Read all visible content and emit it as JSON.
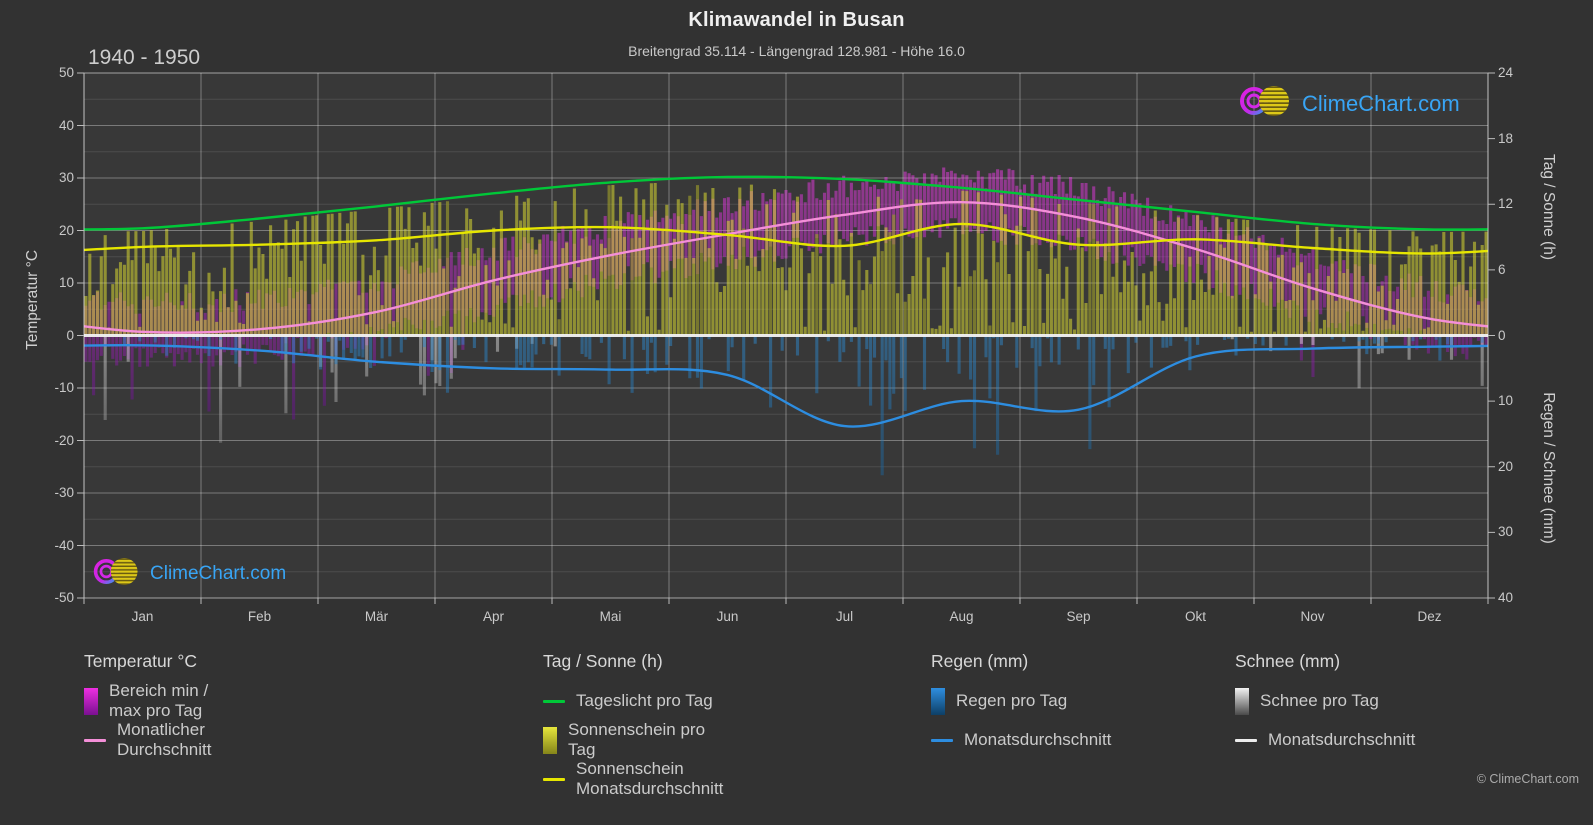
{
  "header": {
    "period_label": "1940 - 1950",
    "title": "Klimawandel in Busan",
    "subtitle": "Breitengrad 35.114 - Längengrad 128.981 - Höhe 16.0"
  },
  "watermarks": {
    "logo_text": "ClimeChart.com",
    "copyright": "© ClimeChart.com"
  },
  "axes": {
    "left": {
      "label": "Temperatur °C",
      "ticks": [
        50,
        40,
        30,
        20,
        10,
        0,
        -10,
        -20,
        -30,
        -40,
        -50
      ],
      "range": [
        -50,
        50
      ]
    },
    "right_top": {
      "label": "Tag / Sonne (h)",
      "ticks": [
        24,
        18,
        12,
        6,
        0
      ],
      "range": [
        0,
        24
      ]
    },
    "right_bottom": {
      "label": "Regen / Schnee (mm)",
      "ticks": [
        10,
        20,
        30,
        40
      ],
      "range": [
        0,
        40
      ],
      "direction": "down"
    },
    "x": {
      "months": [
        "Jan",
        "Feb",
        "Mär",
        "Apr",
        "Mai",
        "Jun",
        "Jul",
        "Aug",
        "Sep",
        "Okt",
        "Nov",
        "Dez"
      ]
    }
  },
  "colors": {
    "page_bg": "#323232",
    "plot_bg": "#383838",
    "grid_major": "rgba(255,255,255,0.26)",
    "grid_minor": "rgba(255,255,255,0.10)",
    "axis_line": "rgba(255,255,255,0.55)",
    "zero_line": "#f2f2f2",
    "daylight_line": "#00c838",
    "sunshine_line": "#e6e600",
    "temp_line": "#f48fd8",
    "rain_line": "#2d8de0",
    "snow_line": "#ededed",
    "magenta_bar_top": "#f03ce8",
    "magenta_bar_mid": "#b428c0",
    "magenta_bar_bottom": "#6a1490",
    "sun_bar": "#d8d832",
    "rain_bar_top": "#2f86c8",
    "rain_bar_bottom": "#0d3f66",
    "snow_bar_top": "#ececec",
    "snow_bar_bottom": "#3c3c3c",
    "brand_blue": "#38a5f5"
  },
  "legend": {
    "groups": [
      {
        "title": "Temperatur °C",
        "items": [
          {
            "type": "gradient",
            "from": "#ee2fe2",
            "to": "#7a1090",
            "label": "Bereich min / max pro Tag"
          },
          {
            "type": "line",
            "color": "#f48fd8",
            "label": "Monatlicher Durchschnitt"
          }
        ]
      },
      {
        "title": "Tag / Sonne (h)",
        "items": [
          {
            "type": "line",
            "color": "#00c838",
            "label": "Tageslicht pro Tag"
          },
          {
            "type": "gradient",
            "from": "#e6e63c",
            "to": "#85851a",
            "label": "Sonnenschein pro Tag"
          },
          {
            "type": "line",
            "color": "#e6e600",
            "label": "Sonnenschein Monatsdurchschnitt"
          }
        ]
      },
      {
        "title": "Regen (mm)",
        "items": [
          {
            "type": "gradient",
            "from": "#2f8ee0",
            "to": "#0d3f66",
            "label": "Regen pro Tag"
          },
          {
            "type": "line",
            "color": "#2d8de0",
            "label": "Monatsdurchschnitt"
          }
        ]
      },
      {
        "title": "Schnee (mm)",
        "items": [
          {
            "type": "gradient",
            "from": "#f2f2f2",
            "to": "#4a4a4a",
            "label": "Schnee pro Tag"
          },
          {
            "type": "line",
            "color": "#ededed",
            "label": "Monatsdurchschnitt"
          }
        ]
      }
    ]
  },
  "chart_data": {
    "type": "area",
    "title": "Klimawandel in Busan",
    "subtitle": "Breitengrad 35.114 - Längengrad 128.981 - Höhe 16.0",
    "period": "1940 - 1950",
    "location": {
      "latitude": 35.114,
      "longitude": 128.981,
      "elevation_m": 16.0
    },
    "categories": [
      "Jan",
      "Feb",
      "Mär",
      "Apr",
      "Mai",
      "Jun",
      "Jul",
      "Aug",
      "Sep",
      "Okt",
      "Nov",
      "Dez"
    ],
    "ylim_temp_c": [
      -50,
      50
    ],
    "ylim_sun_h": [
      0,
      24
    ],
    "ylim_precip_mm": [
      0,
      40
    ],
    "grid": true,
    "legend_position": "bottom",
    "series": [
      {
        "name": "Tageslicht pro Tag",
        "unit": "h",
        "style": "line",
        "color": "#00c838",
        "values": [
          9.8,
          10.7,
          11.8,
          13.0,
          14.0,
          14.5,
          14.3,
          13.5,
          12.4,
          11.3,
          10.2,
          9.7
        ]
      },
      {
        "name": "Sonnenschein Monatsdurchschnitt",
        "unit": "h",
        "style": "line",
        "color": "#e6e600",
        "values": [
          8.1,
          8.3,
          8.7,
          9.6,
          9.9,
          9.2,
          8.2,
          10.2,
          8.3,
          8.8,
          8.0,
          7.5
        ]
      },
      {
        "name": "Sonnenschein pro Tag",
        "unit": "h",
        "style": "daily-bars",
        "color": "#d8d832",
        "monthly_mean": [
          8.1,
          8.3,
          8.7,
          9.6,
          9.9,
          9.2,
          8.2,
          10.2,
          8.3,
          8.8,
          8.0,
          7.5
        ]
      },
      {
        "name": "Monatlicher Durchschnitt (Temperatur)",
        "unit": "°C",
        "style": "line",
        "color": "#f48fd8",
        "values": [
          0.7,
          1.2,
          4.5,
          10.5,
          15.3,
          19.3,
          23.0,
          25.4,
          22.5,
          16.5,
          9.0,
          3.2
        ]
      },
      {
        "name": "Bereich min / max pro Tag (Temperatur)",
        "unit": "°C",
        "style": "daily-range-bars",
        "color": "#ee2fe2",
        "typical_daily_max": [
          6,
          7,
          10,
          16,
          20,
          23,
          27,
          30,
          26,
          21,
          14,
          8
        ],
        "typical_daily_min": [
          -4,
          -4,
          -1,
          6,
          11,
          16,
          20,
          22,
          18,
          12,
          4,
          -2
        ]
      },
      {
        "name": "Monatsdurchschnitt (Regen)",
        "unit": "mm/Tag",
        "style": "line",
        "color": "#2d8de0",
        "values": [
          1.5,
          2.3,
          4.0,
          5.0,
          5.2,
          6.0,
          13.8,
          10.0,
          11.3,
          3.2,
          2.0,
          1.7
        ]
      },
      {
        "name": "Regen pro Tag",
        "unit": "mm",
        "style": "daily-bars",
        "color": "#2f86c8",
        "monthly_mean": [
          1.5,
          2.3,
          4.0,
          5.0,
          5.2,
          6.0,
          13.8,
          10.0,
          11.3,
          3.2,
          2.0,
          1.7
        ]
      },
      {
        "name": "Monatsdurchschnitt (Schnee)",
        "unit": "mm/Tag",
        "style": "line",
        "color": "#ededed",
        "values": [
          0,
          0,
          0,
          0,
          0,
          0,
          0,
          0,
          0,
          0,
          0,
          0
        ]
      },
      {
        "name": "Schnee pro Tag",
        "unit": "mm",
        "style": "daily-bars",
        "color": "#ececec",
        "monthly_potential": [
          2.5,
          3.0,
          2.8,
          0.6,
          0,
          0,
          0,
          0,
          0,
          0,
          0.8,
          2.0
        ]
      }
    ]
  }
}
